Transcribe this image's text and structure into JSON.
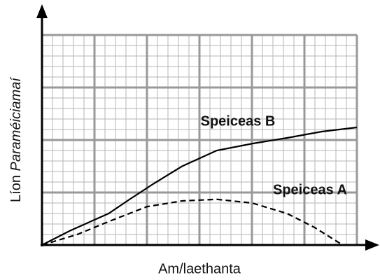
{
  "chart_data": {
    "type": "line",
    "x_label": "Am/laethanta",
    "y_label": [
      "Líon",
      "Paraméiciamaí"
    ],
    "xlim": [
      0,
      6
    ],
    "ylim": [
      0,
      4
    ],
    "xticks": [
      0,
      1,
      2,
      3,
      4,
      5,
      6
    ],
    "yticks": [
      0,
      1,
      2,
      3,
      4
    ],
    "grid": true,
    "minor_divisions": 5,
    "series": [
      {
        "name": "Speiceas B",
        "color": "#000000",
        "dash": false,
        "x": [
          0,
          0.53,
          1.27,
          1.67,
          2.13,
          2.67,
          3.33,
          4,
          4.67,
          5.33,
          6
        ],
        "values": [
          0,
          0.27,
          0.6,
          0.87,
          1.17,
          1.5,
          1.8,
          1.93,
          2.04,
          2.16,
          2.24
        ]
      },
      {
        "name": "Speiceas A",
        "color": "#000000",
        "dash": true,
        "x": [
          0,
          0.67,
          1.33,
          2,
          2.67,
          3.33,
          4,
          4.67,
          5.2,
          5.73
        ],
        "values": [
          0,
          0.2,
          0.47,
          0.73,
          0.84,
          0.87,
          0.8,
          0.6,
          0.33,
          0
        ]
      }
    ]
  }
}
